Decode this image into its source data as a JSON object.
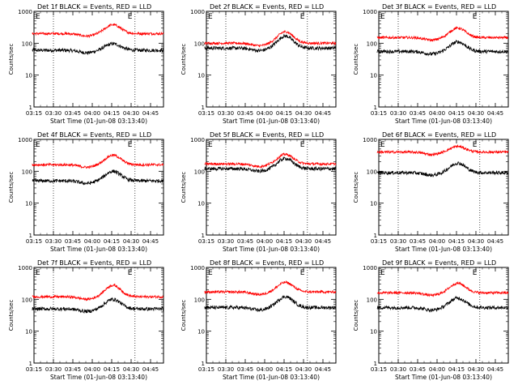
{
  "colors": {
    "events": "#000000",
    "lld": "#ff0000",
    "background": "#ffffff",
    "axis": "#000000"
  },
  "shared": {
    "xlabel": "Start Time (01-Jun-08 03:13:40)",
    "ylabel": "Counts/sec",
    "xticks": [
      "03:15",
      "03:30",
      "03:45",
      "04:00",
      "04:15",
      "04:30",
      "04:45"
    ],
    "yticks": [
      "1",
      "10",
      "100",
      "1000"
    ],
    "ylim": [
      1,
      1000
    ],
    "yscale": "log",
    "xlim_minutes": [
      195,
      295
    ],
    "marker_labels": [
      "E",
      "E"
    ],
    "marker_times": [
      "03:30",
      "04:33"
    ]
  },
  "chart_data": [
    {
      "type": "line",
      "title": "Det 1f BLACK = Events, RED = LLD",
      "series": [
        {
          "name": "Events",
          "level": 60,
          "peak_ratio": 1.6
        },
        {
          "name": "LLD",
          "level": 200,
          "peak_ratio": 1.9
        }
      ]
    },
    {
      "type": "line",
      "title": "Det 2f BLACK = Events, RED = LLD",
      "series": [
        {
          "name": "Events",
          "level": 70,
          "peak_ratio": 2.4
        },
        {
          "name": "LLD",
          "level": 100,
          "peak_ratio": 2.3
        }
      ]
    },
    {
      "type": "line",
      "title": "Det 3f BLACK = Events, RED = LLD",
      "series": [
        {
          "name": "Events",
          "level": 55,
          "peak_ratio": 2.0
        },
        {
          "name": "LLD",
          "level": 150,
          "peak_ratio": 2.0
        }
      ]
    },
    {
      "type": "line",
      "title": "Det 4f BLACK = Events, RED = LLD",
      "series": [
        {
          "name": "Events",
          "level": 50,
          "peak_ratio": 2.0
        },
        {
          "name": "LLD",
          "level": 160,
          "peak_ratio": 2.0
        }
      ]
    },
    {
      "type": "line",
      "title": "Det 5f BLACK = Events, RED = LLD",
      "series": [
        {
          "name": "Events",
          "level": 120,
          "peak_ratio": 2.1
        },
        {
          "name": "LLD",
          "level": 170,
          "peak_ratio": 2.0
        }
      ]
    },
    {
      "type": "line",
      "title": "Det 6f BLACK = Events, RED = LLD",
      "series": [
        {
          "name": "Events",
          "level": 90,
          "peak_ratio": 2.0
        },
        {
          "name": "LLD",
          "level": 400,
          "peak_ratio": 1.5
        }
      ]
    },
    {
      "type": "line",
      "title": "Det 7f BLACK = Events, RED = LLD",
      "series": [
        {
          "name": "Events",
          "level": 50,
          "peak_ratio": 2.0
        },
        {
          "name": "LLD",
          "level": 120,
          "peak_ratio": 2.3
        }
      ]
    },
    {
      "type": "line",
      "title": "Det 8f BLACK = Events, RED = LLD",
      "series": [
        {
          "name": "Events",
          "level": 55,
          "peak_ratio": 2.2
        },
        {
          "name": "LLD",
          "level": 170,
          "peak_ratio": 2.0
        }
      ]
    },
    {
      "type": "line",
      "title": "Det 9f BLACK = Events, RED = LLD",
      "series": [
        {
          "name": "Events",
          "level": 55,
          "peak_ratio": 2.0
        },
        {
          "name": "LLD",
          "level": 160,
          "peak_ratio": 2.0
        }
      ]
    }
  ]
}
